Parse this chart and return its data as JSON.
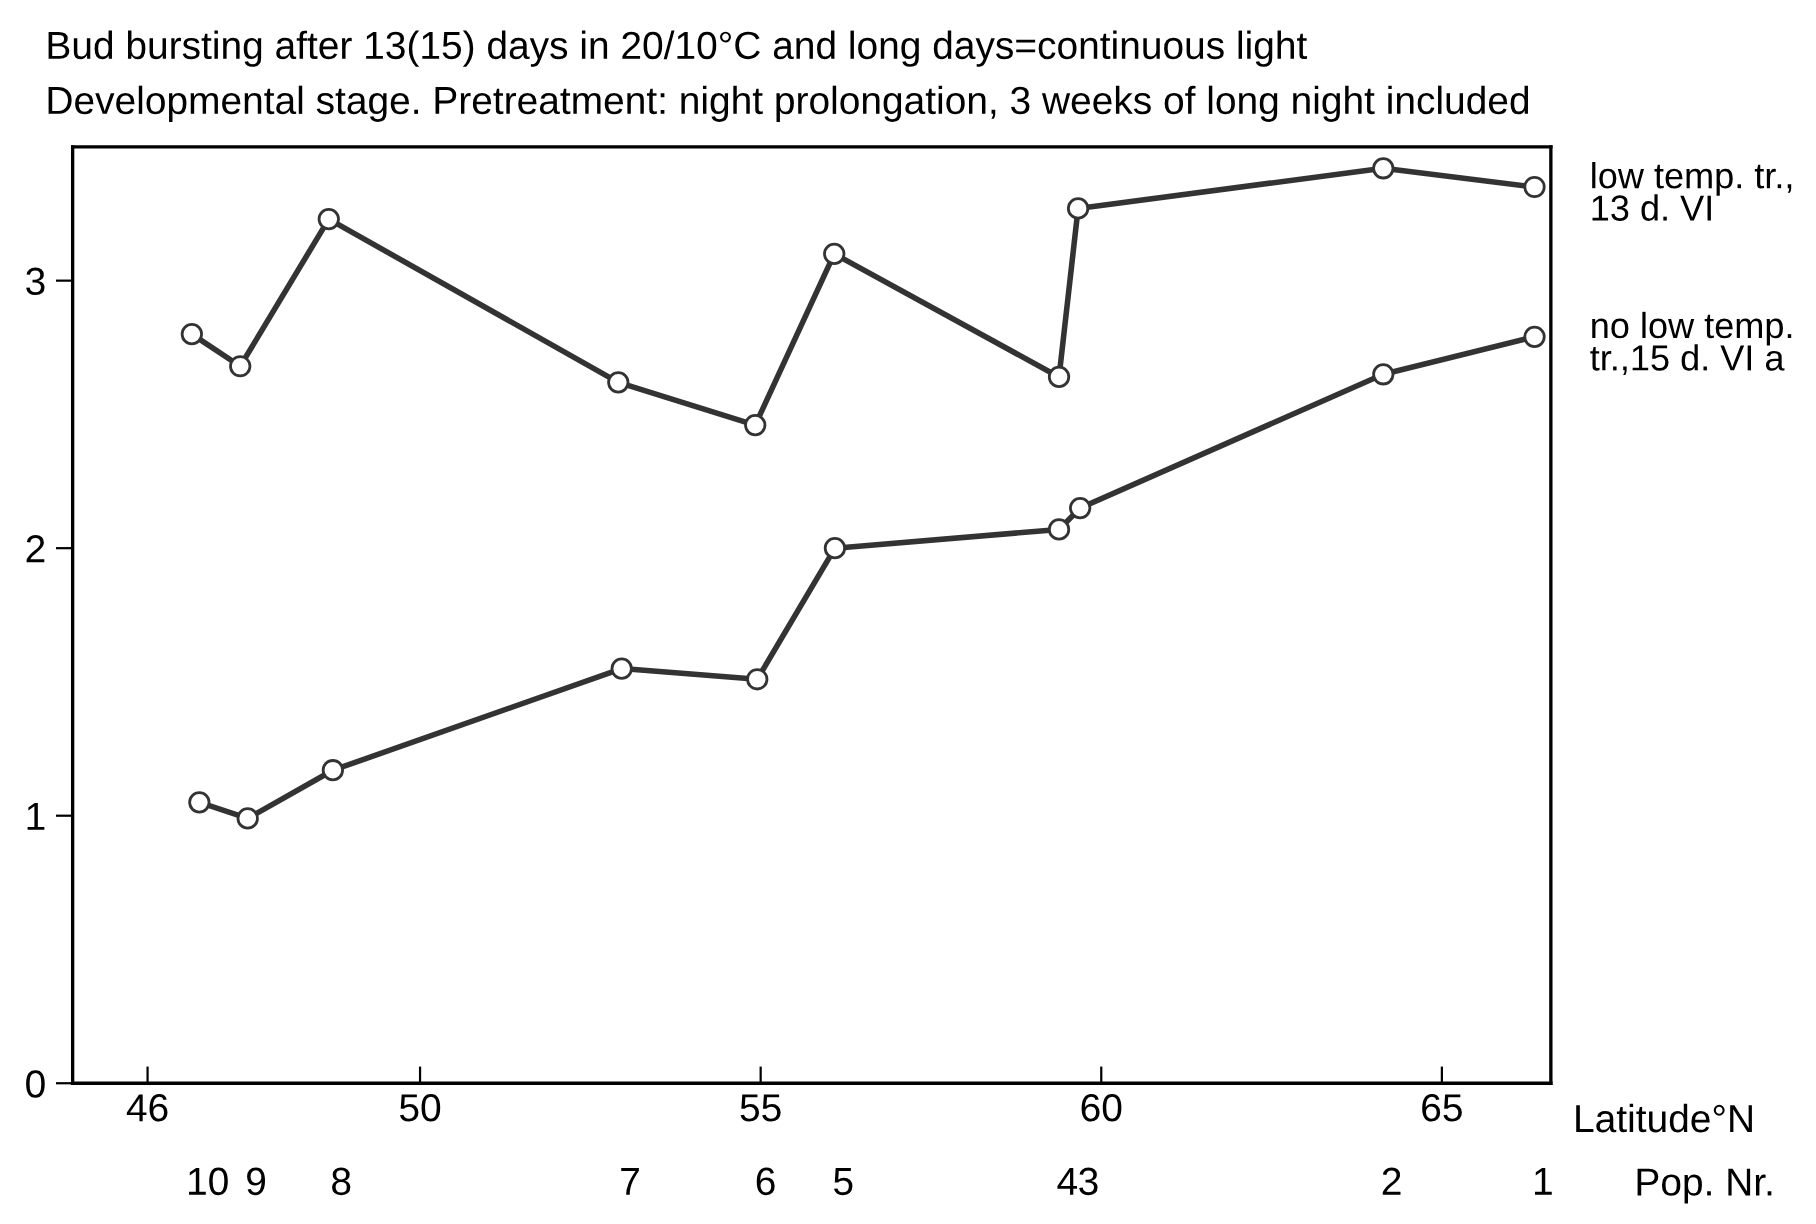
{
  "chart_data": {
    "type": "line",
    "title": "Bud bursting after 13(15) days in 20/10°C and long days=continuous light",
    "subtitle": "Developmental stage. Pretreatment: night prolongation, 3 weeks of long night included",
    "xlabel": "Latitude°N",
    "x2label": "Pop. Nr.",
    "series": [
      {
        "name": "low temp. tr.,\n13 d. VI",
        "color": "#333333",
        "x": [
          46.65,
          47.36,
          48.66,
          52.91,
          54.92,
          56.08,
          59.38,
          59.66,
          64.14,
          66.36
        ],
        "values": [
          2.8,
          2.68,
          3.23,
          2.62,
          2.46,
          3.1,
          2.64,
          3.27,
          3.42,
          3.35
        ]
      },
      {
        "name": "no low temp.\ntr.,15 d. VI a",
        "color": "#333333",
        "x": [
          46.76,
          47.47,
          48.72,
          52.96,
          54.95,
          56.09,
          59.38,
          59.69,
          64.14,
          66.36
        ],
        "values": [
          1.05,
          0.99,
          1.17,
          1.55,
          1.51,
          2.0,
          2.07,
          2.15,
          2.65,
          2.79
        ]
      }
    ],
    "xlim": [
      44.9,
      66.6
    ],
    "xticks": [
      46,
      50,
      55,
      60,
      65
    ],
    "ylim": [
      0,
      3.5
    ],
    "yticks": [
      0,
      1,
      2,
      3
    ],
    "annotations": [
      "10",
      "9",
      "8",
      "7",
      "6",
      "5",
      "4",
      "3",
      "2",
      "1"
    ],
    "marker": "circle",
    "line_style": "solid",
    "grid": false
  }
}
